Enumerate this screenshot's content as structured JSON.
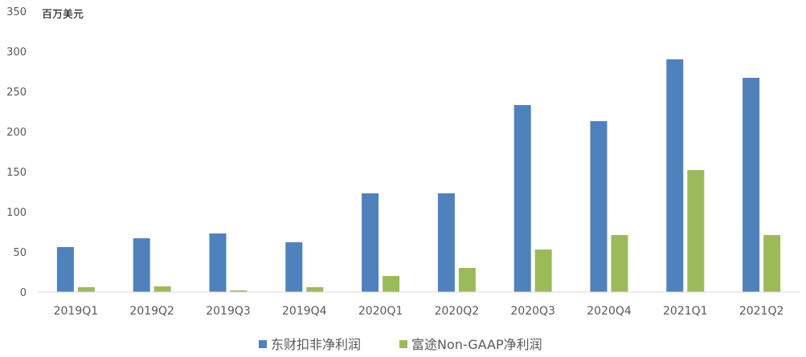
{
  "chart_data": {
    "type": "bar",
    "unit_label": "百万美元",
    "categories": [
      "2019Q1",
      "2019Q2",
      "2019Q3",
      "2019Q4",
      "2020Q1",
      "2020Q2",
      "2020Q3",
      "2020Q4",
      "2021Q1",
      "2021Q2"
    ],
    "series": [
      {
        "name": "东财扣非净利润",
        "color": "#4f81bd",
        "values": [
          56,
          67,
          73,
          62,
          123,
          123,
          233,
          213,
          290,
          267
        ]
      },
      {
        "name": "富途Non-GAAP净利润",
        "color": "#9bbb59",
        "values": [
          6,
          7,
          2,
          6,
          20,
          30,
          53,
          71,
          152,
          71
        ]
      }
    ],
    "ylim": [
      0,
      350
    ],
    "yticks": [
      0,
      50,
      100,
      150,
      200,
      250,
      300,
      350
    ],
    "grid": false,
    "legend": "bottom"
  }
}
